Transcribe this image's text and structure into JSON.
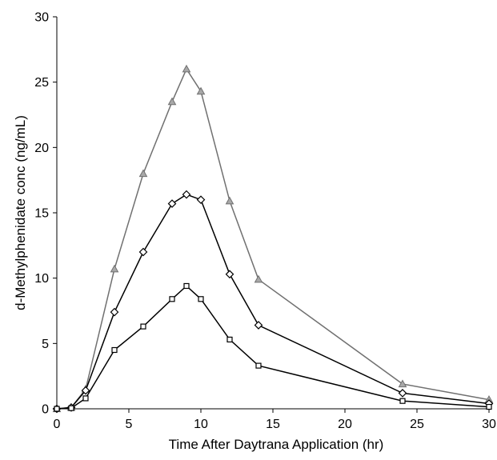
{
  "chart_data": {
    "type": "line",
    "title": "",
    "xlabel": "Time  After Daytrana Application (hr)",
    "ylabel": "d-Methylphenidate conc (ng/mL)",
    "xlim": [
      0,
      30
    ],
    "ylim": [
      0,
      30
    ],
    "xticks": [
      0,
      5,
      10,
      15,
      20,
      25,
      30
    ],
    "yticks": [
      0,
      5,
      10,
      15,
      20,
      25,
      30
    ],
    "grid": false,
    "legend": "none",
    "series": [
      {
        "marker": "triangle",
        "color": "#707070",
        "points": [
          [
            0,
            0
          ],
          [
            1,
            0.1
          ],
          [
            2,
            1.5
          ],
          [
            4,
            10.7
          ],
          [
            6,
            18.0
          ],
          [
            8,
            23.5
          ],
          [
            9,
            26.0
          ],
          [
            10,
            24.3
          ],
          [
            12,
            15.9
          ],
          [
            14,
            9.9
          ],
          [
            24,
            1.9
          ],
          [
            30,
            0.7
          ]
        ]
      },
      {
        "marker": "diamond",
        "color": "#000000",
        "points": [
          [
            0,
            0
          ],
          [
            1,
            0.1
          ],
          [
            2,
            1.4
          ],
          [
            4,
            7.4
          ],
          [
            6,
            12.0
          ],
          [
            8,
            15.7
          ],
          [
            9,
            16.4
          ],
          [
            10,
            16.0
          ],
          [
            12,
            10.3
          ],
          [
            14,
            6.4
          ],
          [
            24,
            1.2
          ],
          [
            30,
            0.4
          ]
        ]
      },
      {
        "marker": "square",
        "color": "#000000",
        "points": [
          [
            0,
            0
          ],
          [
            1,
            0.05
          ],
          [
            2,
            0.8
          ],
          [
            4,
            4.5
          ],
          [
            6,
            6.3
          ],
          [
            8,
            8.4
          ],
          [
            9,
            9.4
          ],
          [
            10,
            8.4
          ],
          [
            12,
            5.3
          ],
          [
            14,
            3.3
          ],
          [
            24,
            0.6
          ],
          [
            30,
            0.15
          ]
        ]
      }
    ]
  }
}
